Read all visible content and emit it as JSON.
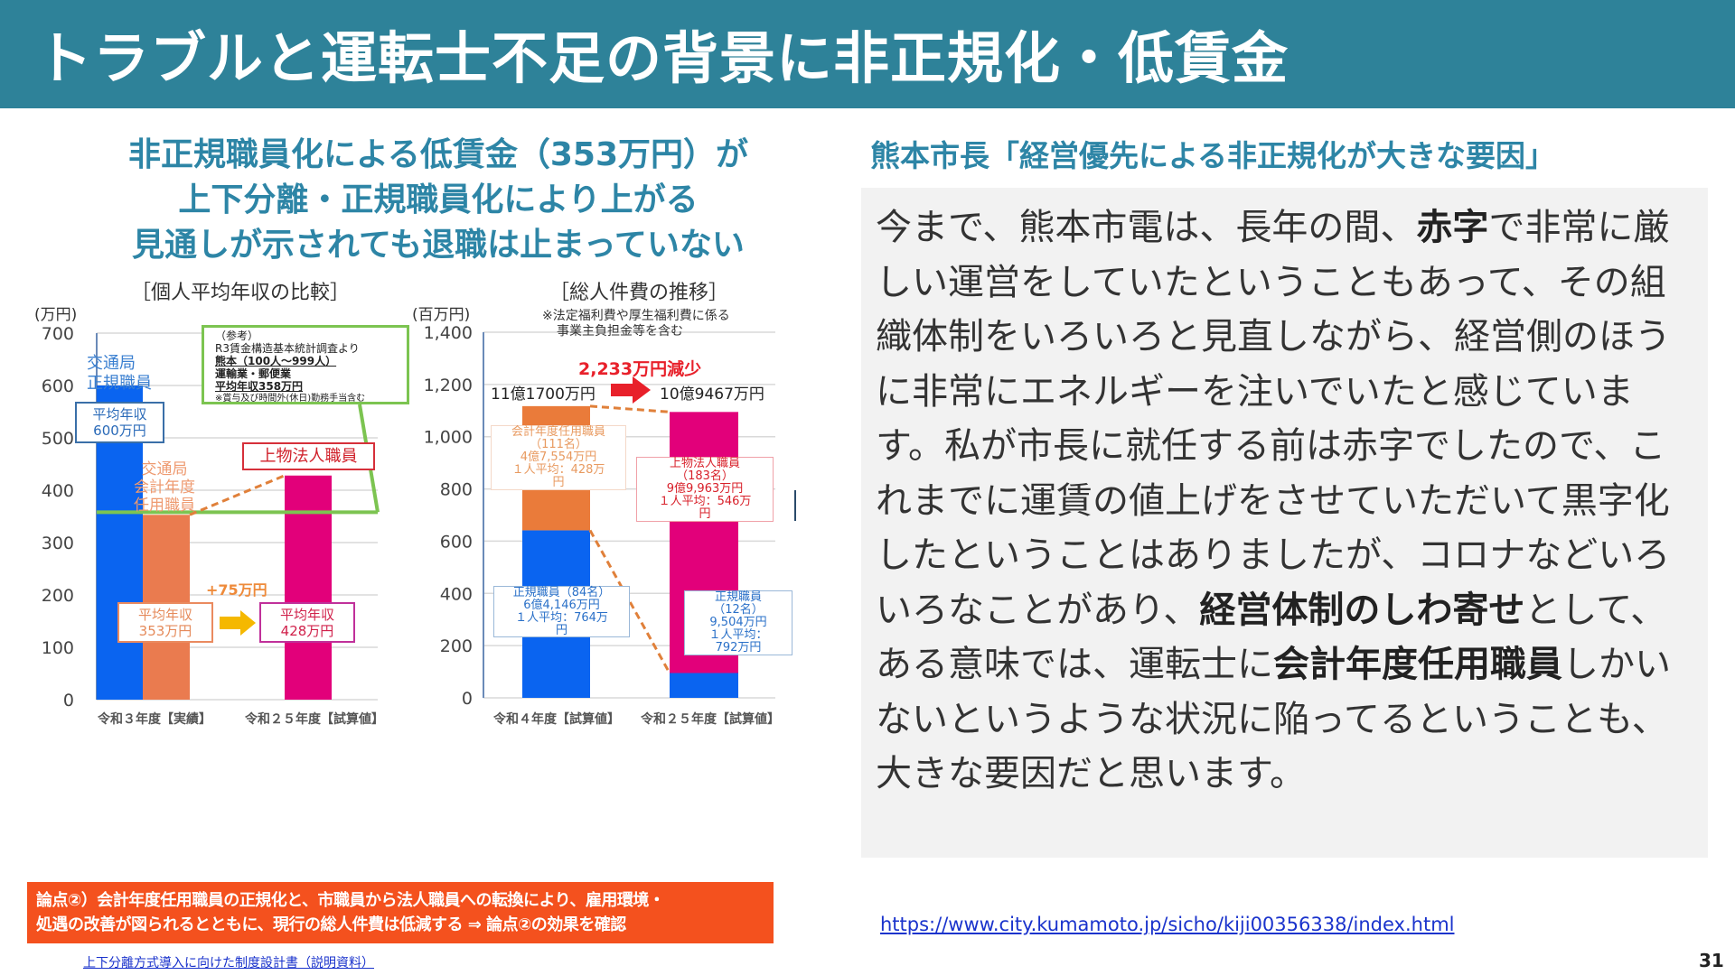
{
  "header": {
    "title": "トラブルと運転士不足の背景に非正規化・低賃金"
  },
  "left": {
    "heading": [
      "非正規職員化による低賃金（353万円）が",
      "上下分離・正規職員化により上がる",
      "見通しが示されても退職は止まっていない"
    ],
    "banner": [
      "論点②）会計年度任用職員の正規化と、市職員から法人職員への転換により、雇用環境・",
      "処遇の改善が図られるとともに、現行の総人件費は低減する ⇒ 論点②の効果を確認"
    ],
    "source_link": "上下分離方式導入に向けた制度設計書（説明資料）"
  },
  "chart_data": [
    {
      "type": "bar",
      "title": "［個人平均年収の比較］",
      "ylabel": "(万円)",
      "ylim": [
        0,
        700
      ],
      "yticks": [
        0,
        100,
        200,
        300,
        400,
        500,
        600,
        700
      ],
      "grid": true,
      "categories": [
        "令和３年度【実績】",
        "令和２５年度【試算値】"
      ],
      "series": [
        {
          "name": "交通局 正規職員",
          "category": "令和３年度【実績】",
          "value": 600,
          "color": "#0a64f0"
        },
        {
          "name": "交通局 会計年度 任用職員",
          "category": "令和３年度【実績】",
          "value": 353,
          "color": "#ea7b4f"
        },
        {
          "name": "上物法人職員",
          "category": "令和２５年度【試算値】",
          "value": 428,
          "color": "#e2007a"
        }
      ],
      "annotations": {
        "box600": [
          "平均年収",
          "600万円"
        ],
        "box353": [
          "平均年収",
          "353万円"
        ],
        "box428": [
          "平均年収",
          "428万円"
        ],
        "increase": "+75万円",
        "reference": [
          "（参考）",
          "R3賃金構造基本統計調査より",
          "熊本（100人～999人）",
          "運輸業・郵便業",
          "平均年収358万円",
          "※賞与及び時間外(休日)勤務手当含む"
        ],
        "reference_value": 358,
        "label_regular": [
          "交通局",
          "正規職員"
        ],
        "label_fiscal": [
          "交通局",
          "会計年度",
          "任用職員"
        ],
        "label_corp": "上物法人職員"
      }
    },
    {
      "type": "bar",
      "stacked": true,
      "title": "［総人件費の推移］",
      "note": [
        "※法定福利費や厚生福利費に係る",
        "事業主負担金等を含む"
      ],
      "ylabel": "(百万円)",
      "ylim": [
        0,
        1400
      ],
      "yticks": [
        "0",
        "200",
        "400",
        "600",
        "800",
        "1,000",
        "1,200",
        "1,400"
      ],
      "grid": true,
      "categories": [
        "令和４年度【試算値】",
        "令和２５年度【試算値】"
      ],
      "series": [
        {
          "name": "正規職員",
          "values": [
            641.46,
            95.04
          ],
          "color": "#0a64f0"
        },
        {
          "name": "会計年度任用職員",
          "values": [
            475.54,
            0
          ],
          "color": "#ea7b3a"
        },
        {
          "name": "上物法人職員",
          "values": [
            0,
            999.63
          ],
          "color": "#e2007a"
        }
      ],
      "annotations": {
        "decrease": "2,233万円減少",
        "total_before": "11億1700万円",
        "total_after": "10億9467万円",
        "box_fiscal": [
          "会計年度任用職員",
          "（111名）",
          "4億7,554万円",
          "１人平均：428万",
          "円"
        ],
        "box_corp": [
          "上物法人職員",
          "（183名）",
          "9億9,963万円",
          "１人平均：546万",
          "円"
        ],
        "box_regular_before": [
          "正規職員（84名）",
          "6億4,146万円",
          "１人平均：764万",
          "円"
        ],
        "box_regular_after": [
          "正規職員",
          "（12名）",
          "9,504万円",
          "１人平均：",
          "792万円"
        ]
      }
    }
  ],
  "right": {
    "heading": "熊本市長「経営優先による非正規化が大きな要因」",
    "quote": [
      {
        "t": "今まで、熊本市電は、長年の間、"
      },
      {
        "t": "赤字",
        "b": true
      },
      {
        "t": "で非常に厳しい運営をしていたということもあって、その組織体制をいろいろと見直しながら、経営側のほうに非常にエネルギーを注いでいたと感じています。私が市長に就任する前は赤字でしたので、これまでに運賃の値上げをさせていただいて黒字化したということはありましたが、コロナなどいろいろなことがあり、"
      },
      {
        "t": "経営体制のしわ寄せ",
        "b": true
      },
      {
        "t": "として、ある意味では、運転士に"
      },
      {
        "t": "会計年度任用職員",
        "b": true
      },
      {
        "t": "しかいないというような状況に陥ってるということも、大きな要因だと思います。"
      }
    ],
    "url": "https://www.city.kumamoto.jp/sicho/kiji00356338/index.html"
  },
  "page_number": "31"
}
